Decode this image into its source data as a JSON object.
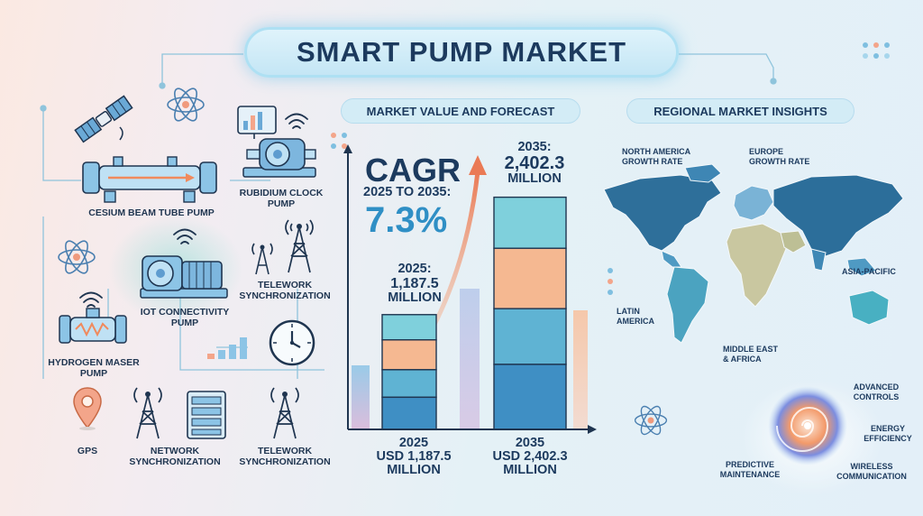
{
  "title": "SMART PUMP MARKET",
  "sections": {
    "market": "MARKET VALUE AND FORECAST",
    "regional": "REGIONAL MARKET INSIGHTS"
  },
  "left_labels": {
    "cesium": "CESIUM BEAM TUBE PUMP",
    "rubidium_l1": "RUBIDIUM CLOCK",
    "rubidium_l2": "PUMP",
    "iot_l1": "IOT CONNECTIVITY",
    "iot_l2": "PUMP",
    "telework1_l1": "TELEWORK",
    "telework1_l2": "SYNCHRONIZATION",
    "hydrogen_l1": "HYDROGEN MASER",
    "hydrogen_l2": "PUMP",
    "gps": "GPS",
    "network_l1": "NETWORK",
    "network_l2": "SYNCHRONIZATION",
    "telework2_l1": "TELEWORK",
    "telework2_l2": "SYNCHRONIZATION"
  },
  "cagr": {
    "head": "CAGR",
    "range": "2025 TO 2035:",
    "value": "7.3%"
  },
  "chart_data": {
    "type": "bar",
    "categories": [
      "2025",
      "2035"
    ],
    "values": [
      1187.5,
      2402.3
    ],
    "unit": "USD Million",
    "annotations": [
      {
        "l1": "2025:",
        "l2": "1,187.5",
        "l3": "MILLION"
      },
      {
        "l1": "2035:",
        "l2": "2,402.3",
        "l3": "MILLION"
      }
    ],
    "x_labels": [
      {
        "l1": "2025",
        "l2": "USD 1,187.5",
        "l3": "MILLION"
      },
      {
        "l1": "2035",
        "l2": "USD 2,402.3",
        "l3": "MILLION"
      }
    ],
    "ylim": [
      0,
      2800
    ],
    "grid": false
  },
  "regions": {
    "na_l1": "NORTH AMERICA",
    "na_l2": "GROWTH RATE",
    "eu_l1": "EUROPE",
    "eu_l2": "GROWTH RATE",
    "apac": "ASIA-PACIFIC",
    "latam_l1": "LATIN",
    "latam_l2": "AMERICA",
    "mea_l1": "MIDDLE EAST",
    "mea_l2": "& AFRICA"
  },
  "features": {
    "advanced_l1": "ADVANCED",
    "advanced_l2": "CONTROLS",
    "energy_l1": "ENERGY",
    "energy_l2": "EFFICIENCY",
    "predictive_l1": "PREDICTIVE",
    "predictive_l2": "MAINTENANCE",
    "wireless_l1": "WIRELESS",
    "wireless_l2": "COMMUNICATION"
  },
  "colors": {
    "navy": "#1c3a5e",
    "accent_blue": "#2f8fc5",
    "bar_teal": "#5fb3d3",
    "bar_orange": "#f5b891",
    "bar_top": "#7fd0dc"
  }
}
